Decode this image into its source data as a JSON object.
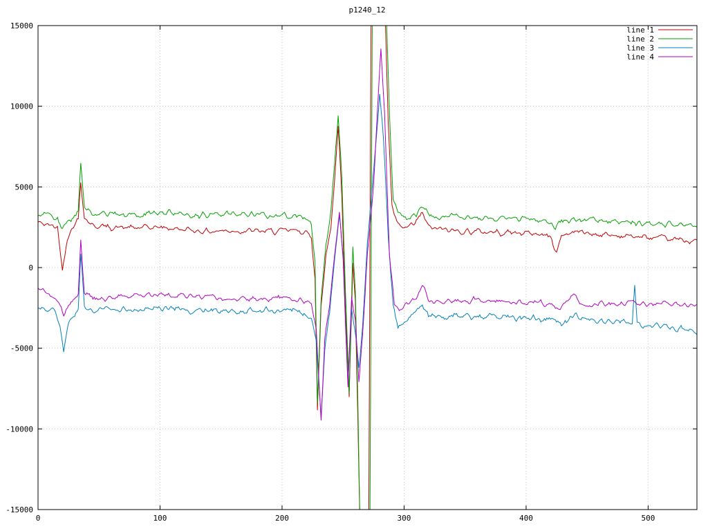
{
  "chart_data": {
    "type": "line",
    "title": "p1240_12",
    "x_axis": {
      "min": 0,
      "max": 540,
      "ticks": [
        0,
        100,
        200,
        300,
        400,
        500
      ]
    },
    "y_axis": {
      "min": -15000,
      "max": 15000,
      "ticks": [
        -15000,
        -10000,
        -5000,
        0,
        5000,
        10000,
        15000
      ]
    },
    "grid": true,
    "legend_position": "top-right",
    "legend_labels": [
      "line 1",
      "line 2",
      "line 3",
      "line 4"
    ],
    "colors": {
      "background": "#ffffff",
      "grid": "#c0c0c0",
      "axis": "#000000"
    },
    "noise_seed": 42,
    "series": [
      {
        "name": "line 1",
        "color": "#c00000",
        "noise_amplitude": 280,
        "keypoints": [
          [
            0,
            2800
          ],
          [
            10,
            2600
          ],
          [
            16,
            2500
          ],
          [
            20,
            -150
          ],
          [
            24,
            1900
          ],
          [
            29,
            2600
          ],
          [
            33,
            3000
          ],
          [
            35,
            5400
          ],
          [
            38,
            3100
          ],
          [
            45,
            2600
          ],
          [
            60,
            2500
          ],
          [
            80,
            2450
          ],
          [
            100,
            2500
          ],
          [
            120,
            2350
          ],
          [
            140,
            2250
          ],
          [
            160,
            2300
          ],
          [
            180,
            2250
          ],
          [
            200,
            2250
          ],
          [
            215,
            2300
          ],
          [
            224,
            1900
          ],
          [
            227,
            -500
          ],
          [
            229,
            -8800
          ],
          [
            232,
            -2500
          ],
          [
            236,
            800
          ],
          [
            240,
            2500
          ],
          [
            243,
            5500
          ],
          [
            246,
            8800
          ],
          [
            249,
            4500
          ],
          [
            252,
            -2500
          ],
          [
            255,
            -8000
          ],
          [
            258,
            300
          ],
          [
            260,
            -2000
          ],
          [
            262,
            -9000
          ],
          [
            264,
            -16500
          ],
          [
            271,
            -16500
          ],
          [
            273,
            17000
          ],
          [
            284,
            17000
          ],
          [
            287,
            9000
          ],
          [
            290,
            3800
          ],
          [
            294,
            2700
          ],
          [
            300,
            2400
          ],
          [
            308,
            2600
          ],
          [
            315,
            3400
          ],
          [
            320,
            2500
          ],
          [
            335,
            2300
          ],
          [
            355,
            2250
          ],
          [
            375,
            2200
          ],
          [
            395,
            2150
          ],
          [
            410,
            2100
          ],
          [
            420,
            1900
          ],
          [
            425,
            900
          ],
          [
            429,
            2000
          ],
          [
            440,
            2250
          ],
          [
            455,
            2100
          ],
          [
            470,
            2000
          ],
          [
            485,
            1950
          ],
          [
            500,
            1850
          ],
          [
            515,
            1750
          ],
          [
            530,
            1700
          ],
          [
            540,
            1650
          ]
        ]
      },
      {
        "name": "line 2",
        "color": "#00a000",
        "noise_amplitude": 280,
        "keypoints": [
          [
            0,
            3300
          ],
          [
            10,
            3150
          ],
          [
            16,
            3050
          ],
          [
            20,
            2300
          ],
          [
            24,
            2900
          ],
          [
            30,
            3200
          ],
          [
            33,
            3600
          ],
          [
            35,
            6500
          ],
          [
            38,
            3700
          ],
          [
            45,
            3400
          ],
          [
            60,
            3300
          ],
          [
            80,
            3250
          ],
          [
            100,
            3400
          ],
          [
            120,
            3300
          ],
          [
            140,
            3250
          ],
          [
            160,
            3350
          ],
          [
            180,
            3250
          ],
          [
            200,
            3250
          ],
          [
            215,
            3200
          ],
          [
            224,
            2800
          ],
          [
            227,
            300
          ],
          [
            229,
            -8500
          ],
          [
            232,
            -2000
          ],
          [
            236,
            1500
          ],
          [
            240,
            3500
          ],
          [
            243,
            6500
          ],
          [
            246,
            9400
          ],
          [
            249,
            5500
          ],
          [
            252,
            -1500
          ],
          [
            255,
            -7800
          ],
          [
            258,
            1200
          ],
          [
            260,
            -1500
          ],
          [
            262,
            -8000
          ],
          [
            264,
            -16500
          ],
          [
            272,
            -16500
          ],
          [
            274,
            17000
          ],
          [
            285,
            17000
          ],
          [
            288,
            9500
          ],
          [
            291,
            4300
          ],
          [
            295,
            3400
          ],
          [
            302,
            3100
          ],
          [
            310,
            3300
          ],
          [
            315,
            3800
          ],
          [
            321,
            3150
          ],
          [
            340,
            3200
          ],
          [
            360,
            3100
          ],
          [
            380,
            3050
          ],
          [
            400,
            3000
          ],
          [
            418,
            2900
          ],
          [
            424,
            2450
          ],
          [
            429,
            2850
          ],
          [
            440,
            3000
          ],
          [
            455,
            2950
          ],
          [
            470,
            2850
          ],
          [
            485,
            2800
          ],
          [
            500,
            2800
          ],
          [
            515,
            2700
          ],
          [
            530,
            2650
          ],
          [
            540,
            2600
          ]
        ]
      },
      {
        "name": "line 3",
        "color": "#0080b8",
        "noise_amplitude": 300,
        "keypoints": [
          [
            0,
            -2400
          ],
          [
            8,
            -2550
          ],
          [
            14,
            -2700
          ],
          [
            18,
            -3600
          ],
          [
            21,
            -5200
          ],
          [
            25,
            -3600
          ],
          [
            30,
            -2900
          ],
          [
            33,
            -2400
          ],
          [
            35,
            900
          ],
          [
            38,
            -2300
          ],
          [
            45,
            -2700
          ],
          [
            60,
            -2650
          ],
          [
            80,
            -2550
          ],
          [
            100,
            -2500
          ],
          [
            120,
            -2600
          ],
          [
            140,
            -2650
          ],
          [
            160,
            -2700
          ],
          [
            180,
            -2700
          ],
          [
            200,
            -2650
          ],
          [
            215,
            -2700
          ],
          [
            224,
            -3200
          ],
          [
            228,
            -4500
          ],
          [
            232,
            -9400
          ],
          [
            235,
            -5000
          ],
          [
            239,
            -2800
          ],
          [
            243,
            500
          ],
          [
            247,
            3200
          ],
          [
            250,
            800
          ],
          [
            254,
            -7300
          ],
          [
            257,
            -2500
          ],
          [
            260,
            -4000
          ],
          [
            263,
            -6200
          ],
          [
            266,
            -3500
          ],
          [
            270,
            1500
          ],
          [
            275,
            6000
          ],
          [
            280,
            10600
          ],
          [
            283,
            8200
          ],
          [
            287,
            2000
          ],
          [
            291,
            -2300
          ],
          [
            295,
            -3800
          ],
          [
            301,
            -3300
          ],
          [
            308,
            -2900
          ],
          [
            315,
            -2300
          ],
          [
            320,
            -3000
          ],
          [
            335,
            -3000
          ],
          [
            355,
            -2950
          ],
          [
            375,
            -3000
          ],
          [
            395,
            -3100
          ],
          [
            410,
            -3150
          ],
          [
            420,
            -3250
          ],
          [
            430,
            -3500
          ],
          [
            440,
            -3000
          ],
          [
            452,
            -3300
          ],
          [
            465,
            -3350
          ],
          [
            478,
            -3400
          ],
          [
            487,
            -3450
          ],
          [
            489,
            -1100
          ],
          [
            491,
            -3450
          ],
          [
            500,
            -3550
          ],
          [
            515,
            -3700
          ],
          [
            530,
            -3850
          ],
          [
            540,
            -3950
          ]
        ]
      },
      {
        "name": "line 4",
        "color": "#b000c0",
        "noise_amplitude": 260,
        "keypoints": [
          [
            0,
            -1200
          ],
          [
            8,
            -1550
          ],
          [
            14,
            -1800
          ],
          [
            18,
            -2400
          ],
          [
            21,
            -3000
          ],
          [
            26,
            -2250
          ],
          [
            30,
            -1950
          ],
          [
            33,
            -1600
          ],
          [
            35,
            1700
          ],
          [
            38,
            -1600
          ],
          [
            45,
            -1900
          ],
          [
            60,
            -1850
          ],
          [
            80,
            -1750
          ],
          [
            100,
            -1700
          ],
          [
            120,
            -1800
          ],
          [
            140,
            -1850
          ],
          [
            160,
            -1900
          ],
          [
            180,
            -1950
          ],
          [
            200,
            -1900
          ],
          [
            215,
            -1950
          ],
          [
            224,
            -2400
          ],
          [
            228,
            -3800
          ],
          [
            232,
            -9300
          ],
          [
            235,
            -4500
          ],
          [
            239,
            -2300
          ],
          [
            243,
            700
          ],
          [
            247,
            3300
          ],
          [
            250,
            500
          ],
          [
            254,
            -7400
          ],
          [
            257,
            -1800
          ],
          [
            260,
            -3200
          ],
          [
            263,
            -7000
          ],
          [
            266,
            -4200
          ],
          [
            270,
            800
          ],
          [
            275,
            5200
          ],
          [
            281,
            13500
          ],
          [
            284,
            9500
          ],
          [
            288,
            800
          ],
          [
            292,
            -2300
          ],
          [
            296,
            -2600
          ],
          [
            303,
            -2300
          ],
          [
            310,
            -1800
          ],
          [
            315,
            -1100
          ],
          [
            321,
            -2100
          ],
          [
            340,
            -2050
          ],
          [
            360,
            -2000
          ],
          [
            380,
            -2100
          ],
          [
            395,
            -2100
          ],
          [
            410,
            -2150
          ],
          [
            420,
            -2250
          ],
          [
            428,
            -2550
          ],
          [
            440,
            -1650
          ],
          [
            447,
            -2350
          ],
          [
            460,
            -2250
          ],
          [
            475,
            -2300
          ],
          [
            490,
            -2250
          ],
          [
            505,
            -2250
          ],
          [
            520,
            -2300
          ],
          [
            540,
            -2350
          ]
        ]
      }
    ]
  }
}
